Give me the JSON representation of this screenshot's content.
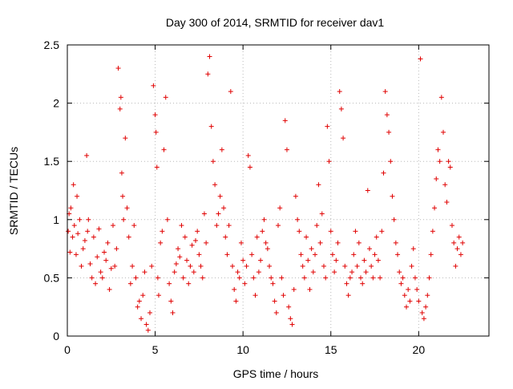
{
  "chart_data": {
    "type": "scatter",
    "title": "Day 300 of 2014, SRMTID for receiver dav1",
    "xlabel": "GPS time / hours",
    "ylabel": "SRMTID / TECUs",
    "xlim": [
      0,
      24
    ],
    "ylim": [
      0,
      2.5
    ],
    "xticks": [
      0,
      5,
      10,
      15,
      20
    ],
    "xtick_labels": [
      "0",
      "5",
      "10",
      "15",
      "20"
    ],
    "yticks": [
      0,
      0.5,
      1,
      1.5,
      2,
      2.5
    ],
    "ytick_labels": [
      "0",
      "0.5",
      "1",
      "1.5",
      "2",
      "2.5"
    ],
    "grid": true,
    "marker": "+",
    "color": "#e00000",
    "series": [
      {
        "name": "SRMTID",
        "x": [
          0.05,
          0.1,
          0.15,
          0.2,
          0.3,
          0.35,
          0.4,
          0.5,
          0.55,
          0.6,
          0.7,
          0.8,
          0.9,
          1.0,
          1.1,
          1.15,
          1.2,
          1.3,
          1.4,
          1.5,
          1.6,
          1.7,
          1.8,
          1.9,
          2.0,
          2.1,
          2.2,
          2.3,
          2.4,
          2.5,
          2.6,
          2.7,
          2.8,
          2.9,
          3.0,
          3.05,
          3.1,
          3.15,
          3.2,
          3.3,
          3.4,
          3.5,
          3.6,
          3.7,
          3.8,
          3.9,
          4.0,
          4.1,
          4.2,
          4.3,
          4.4,
          4.5,
          4.6,
          4.7,
          4.8,
          4.9,
          5.0,
          5.05,
          5.1,
          5.15,
          5.2,
          5.3,
          5.4,
          5.5,
          5.6,
          5.7,
          5.8,
          5.9,
          6.0,
          6.1,
          6.2,
          6.3,
          6.4,
          6.5,
          6.6,
          6.7,
          6.8,
          6.9,
          7.0,
          7.1,
          7.2,
          7.3,
          7.4,
          7.5,
          7.6,
          7.7,
          7.8,
          7.9,
          8.0,
          8.1,
          8.2,
          8.3,
          8.4,
          8.5,
          8.6,
          8.7,
          8.8,
          8.9,
          9.0,
          9.1,
          9.2,
          9.3,
          9.4,
          9.5,
          9.6,
          9.7,
          9.8,
          9.9,
          10.0,
          10.1,
          10.2,
          10.3,
          10.4,
          10.5,
          10.6,
          10.7,
          10.8,
          10.9,
          11.0,
          11.1,
          11.2,
          11.3,
          11.4,
          11.5,
          11.6,
          11.7,
          11.8,
          11.9,
          12.0,
          12.1,
          12.2,
          12.3,
          12.4,
          12.5,
          12.6,
          12.7,
          12.8,
          12.9,
          13.0,
          13.1,
          13.2,
          13.3,
          13.4,
          13.5,
          13.6,
          13.7,
          13.8,
          13.9,
          14.0,
          14.1,
          14.2,
          14.3,
          14.4,
          14.5,
          14.6,
          14.7,
          14.8,
          14.9,
          15.0,
          15.1,
          15.2,
          15.3,
          15.4,
          15.5,
          15.6,
          15.7,
          15.8,
          15.9,
          16.0,
          16.1,
          16.2,
          16.3,
          16.4,
          16.5,
          16.6,
          16.7,
          16.8,
          16.9,
          17.0,
          17.1,
          17.2,
          17.3,
          17.4,
          17.5,
          17.6,
          17.7,
          17.8,
          17.9,
          18.0,
          18.1,
          18.2,
          18.3,
          18.4,
          18.5,
          18.6,
          18.7,
          18.8,
          18.9,
          19.0,
          19.1,
          19.2,
          19.3,
          19.4,
          19.5,
          19.6,
          19.7,
          19.8,
          19.9,
          20.0,
          20.1,
          20.2,
          20.3,
          20.4,
          20.5,
          20.6,
          20.7,
          20.8,
          20.9,
          21.0,
          21.1,
          21.2,
          21.3,
          21.4,
          21.5,
          21.6,
          21.7,
          21.8,
          21.9,
          22.0,
          22.1,
          22.2,
          22.3,
          22.4,
          22.5
        ],
        "y": [
          0.9,
          1.05,
          0.72,
          1.1,
          0.85,
          1.3,
          0.95,
          0.7,
          1.2,
          0.88,
          1.0,
          0.6,
          0.75,
          0.82,
          1.55,
          0.9,
          1.0,
          0.62,
          0.5,
          0.85,
          0.45,
          0.68,
          0.92,
          0.55,
          0.5,
          0.72,
          0.65,
          0.8,
          0.4,
          0.58,
          0.95,
          0.6,
          0.75,
          2.3,
          1.95,
          2.05,
          1.4,
          1.2,
          1.0,
          1.7,
          1.1,
          0.85,
          0.45,
          0.6,
          0.95,
          0.5,
          0.25,
          0.3,
          0.15,
          0.35,
          0.55,
          0.1,
          0.05,
          0.2,
          0.6,
          2.15,
          1.9,
          1.75,
          1.45,
          0.5,
          0.35,
          0.8,
          0.9,
          1.6,
          2.05,
          1.0,
          0.45,
          0.3,
          0.2,
          0.55,
          0.62,
          0.75,
          0.68,
          0.95,
          0.5,
          0.85,
          0.65,
          0.45,
          0.6,
          0.78,
          0.55,
          0.82,
          0.9,
          0.7,
          0.6,
          0.5,
          1.05,
          0.8,
          2.25,
          2.4,
          1.8,
          1.5,
          1.3,
          0.95,
          1.05,
          1.2,
          1.6,
          1.1,
          0.85,
          0.7,
          0.95,
          2.1,
          0.6,
          0.4,
          0.3,
          0.55,
          0.5,
          0.8,
          0.65,
          0.45,
          0.6,
          1.55,
          1.45,
          0.7,
          0.5,
          0.35,
          0.85,
          0.55,
          0.65,
          0.9,
          1.0,
          0.8,
          0.75,
          0.6,
          0.5,
          0.45,
          0.3,
          0.2,
          0.95,
          1.1,
          0.5,
          0.35,
          1.85,
          1.6,
          0.25,
          0.15,
          0.1,
          0.4,
          1.2,
          1.0,
          0.9,
          0.7,
          0.6,
          0.5,
          0.85,
          0.65,
          0.4,
          0.75,
          0.55,
          0.7,
          0.95,
          1.3,
          0.8,
          1.05,
          0.6,
          0.5,
          1.8,
          1.5,
          0.9,
          0.7,
          0.55,
          0.65,
          0.8,
          2.1,
          1.95,
          1.7,
          0.6,
          0.45,
          0.35,
          0.5,
          0.55,
          0.7,
          0.9,
          0.6,
          0.8,
          0.5,
          0.45,
          0.65,
          0.55,
          1.25,
          0.75,
          0.6,
          0.5,
          0.7,
          0.85,
          0.65,
          0.5,
          0.9,
          1.4,
          2.1,
          1.9,
          1.75,
          1.5,
          1.2,
          1.0,
          0.8,
          0.7,
          0.55,
          0.45,
          0.5,
          0.35,
          0.25,
          0.4,
          0.3,
          0.6,
          0.75,
          0.5,
          0.4,
          0.3,
          2.38,
          0.2,
          0.15,
          0.25,
          0.35,
          0.5,
          0.7,
          0.9,
          1.1,
          1.35,
          1.6,
          1.5,
          2.05,
          1.75,
          1.3,
          1.15,
          1.5,
          1.45,
          0.95,
          0.8,
          0.6,
          0.75,
          0.85,
          0.7,
          0.8
        ]
      }
    ]
  }
}
